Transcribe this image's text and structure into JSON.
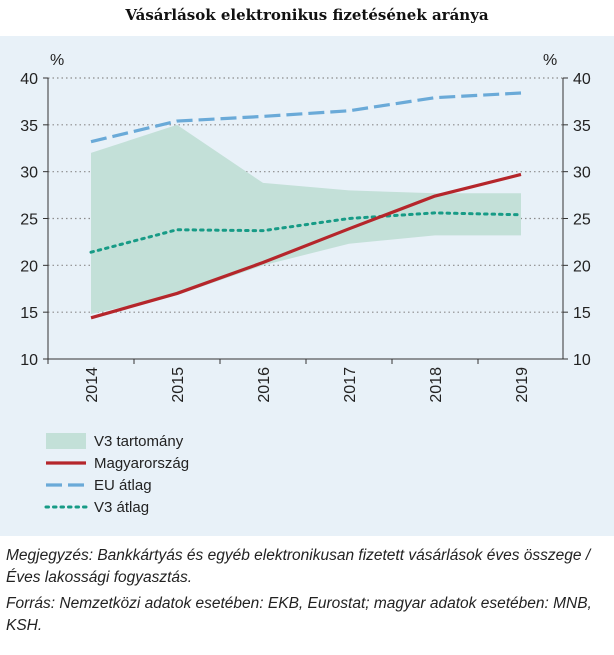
{
  "chart_data": {
    "type": "area",
    "title": "Vásárlások elektronikus fizetésének aránya",
    "ylabel_left": "%",
    "ylabel_right": "%",
    "categories": [
      "2014",
      "2015",
      "2016",
      "2017",
      "2018",
      "2019"
    ],
    "ylim": [
      10,
      40
    ],
    "yticks": [
      10,
      15,
      20,
      25,
      30,
      35,
      40
    ],
    "grid": "horizontal dotted",
    "legend_position": "bottom-left",
    "band": {
      "name": "V3 tartomány",
      "color": "#c3e0d8",
      "upper": [
        32.0,
        35.0,
        28.8,
        28.0,
        27.7,
        27.7
      ],
      "lower": [
        14.8,
        16.8,
        20.0,
        22.3,
        23.2,
        23.2
      ]
    },
    "series": [
      {
        "name": "Magyarország",
        "style": "solid",
        "color": "#b5262b",
        "values": [
          14.4,
          17.0,
          20.3,
          23.9,
          27.4,
          29.7
        ]
      },
      {
        "name": "EU átlag",
        "style": "dashed",
        "color": "#6aaad8",
        "values": [
          33.2,
          35.4,
          35.9,
          36.5,
          37.9,
          38.4
        ]
      },
      {
        "name": "V3 átlag",
        "style": "dotted",
        "color": "#179b86",
        "values": [
          21.4,
          23.8,
          23.7,
          25.0,
          25.6,
          25.4
        ]
      }
    ]
  },
  "notes": {
    "megjegyzes": "Megjegyzés: Bankkártyás és egyéb elektronikusan fizetett vásárlások éves összege / Éves lakossági fogyasztás.",
    "forras": "Forrás: Nemzetközi adatok esetében: EKB, Eurostat; magyar adatok esetében: MNB, KSH."
  }
}
